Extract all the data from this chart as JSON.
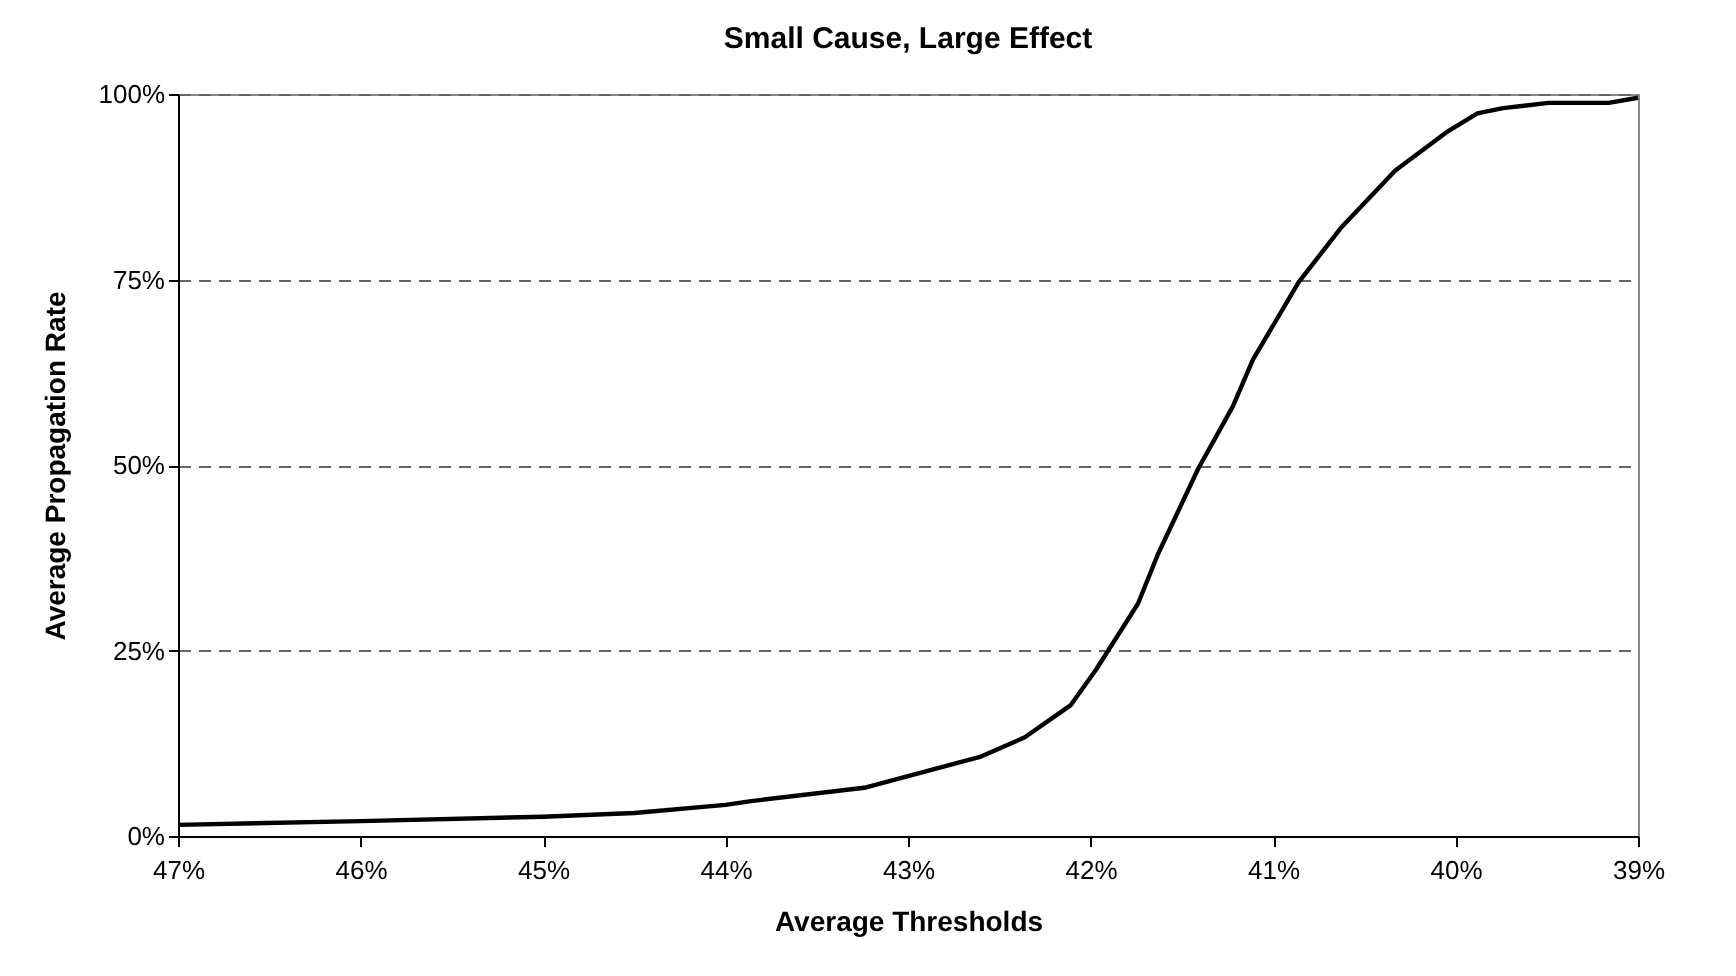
{
  "chart_data": {
    "type": "line",
    "title": "Small Cause, Large Effect",
    "xlabel": "Average Thresholds",
    "ylabel": "Average Propagation Rate",
    "x": [
      47,
      46,
      45,
      44.5,
      44,
      43.86,
      43.24,
      42.6,
      42.36,
      42.11,
      41.97,
      41.74,
      41.63,
      41.41,
      41.22,
      41.11,
      40.86,
      40.63,
      40.33,
      40.04,
      39.88,
      39.74,
      39.49,
      39.16,
      39
    ],
    "series": [
      {
        "color": "#000000",
        "values": [
          1.5,
          2,
          2.6,
          3.1,
          4.2,
          4.7,
          6.5,
          10.7,
          13.3,
          17.6,
          22.4,
          31.3,
          38,
          49.5,
          57.9,
          64.2,
          74.6,
          81.9,
          89.7,
          95,
          97.4,
          98.1,
          98.8,
          98.8,
          99.5
        ]
      }
    ],
    "xlim": [
      47,
      39
    ],
    "ylim": [
      0,
      100
    ],
    "xticks": [
      {
        "value": 47,
        "label": "47%"
      },
      {
        "value": 46,
        "label": "46%"
      },
      {
        "value": 45,
        "label": "45%"
      },
      {
        "value": 44,
        "label": "44%"
      },
      {
        "value": 43,
        "label": "43%"
      },
      {
        "value": 42,
        "label": "42%"
      },
      {
        "value": 41,
        "label": "41%"
      },
      {
        "value": 40,
        "label": "40%"
      },
      {
        "value": 39,
        "label": "39%"
      }
    ],
    "yticks": [
      {
        "value": 0,
        "label": "0%"
      },
      {
        "value": 25,
        "label": "25%"
      },
      {
        "value": 50,
        "label": "50%"
      },
      {
        "value": 75,
        "label": "75%"
      },
      {
        "value": 100,
        "label": "100%"
      }
    ],
    "grid": "y",
    "line_style": "solid",
    "marker": "none"
  }
}
